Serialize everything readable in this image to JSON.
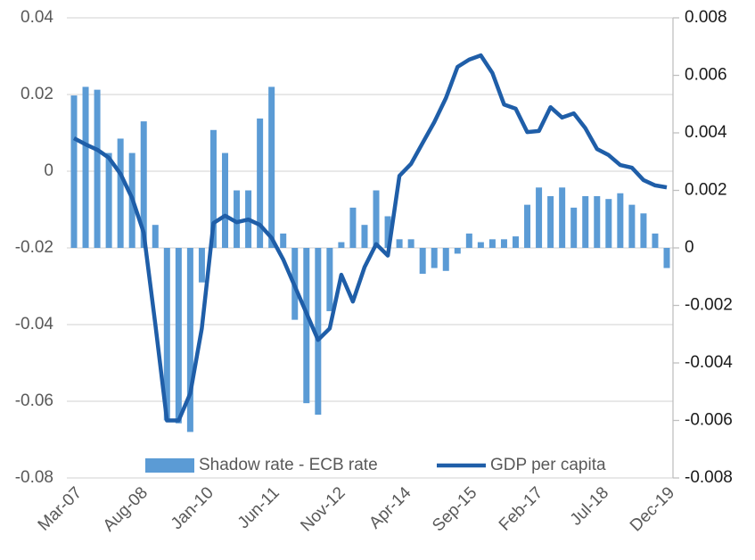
{
  "chart_data": {
    "type": "combo",
    "x": [
      "Mar-07",
      "Jun-07",
      "Sep-07",
      "Dec-07",
      "Mar-08",
      "Jun-08",
      "Sep-08",
      "Dec-08",
      "Mar-09",
      "Jun-09",
      "Sep-09",
      "Dec-09",
      "Mar-10",
      "Jun-10",
      "Sep-10",
      "Dec-10",
      "Mar-11",
      "Jun-11",
      "Sep-11",
      "Dec-11",
      "Mar-12",
      "Jun-12",
      "Sep-12",
      "Dec-12",
      "Mar-13",
      "Jun-13",
      "Sep-13",
      "Dec-13",
      "Mar-14",
      "Jun-14",
      "Sep-14",
      "Dec-14",
      "Mar-15",
      "Jun-15",
      "Sep-15",
      "Dec-15",
      "Mar-16",
      "Jun-16",
      "Sep-16",
      "Dec-16",
      "Mar-17",
      "Jun-17",
      "Sep-17",
      "Dec-17",
      "Mar-18",
      "Jun-18",
      "Sep-18",
      "Dec-18",
      "Mar-19",
      "Jun-19",
      "Sep-19",
      "Dec-19"
    ],
    "xticks": [
      "Mar-07",
      "Aug-08",
      "Jan-10",
      "Jun-11",
      "Nov-12",
      "Apr-14",
      "Sep-15",
      "Feb-17",
      "Jul-18",
      "Dec-19"
    ],
    "ylim": [
      -0.08,
      0.04
    ],
    "yticks": [
      -0.08,
      -0.06,
      -0.04,
      -0.02,
      0,
      0.02,
      0.04
    ],
    "y2lim": [
      -0.008,
      0.008
    ],
    "y2ticks": [
      -0.008,
      -0.006,
      -0.004,
      -0.002,
      0,
      0.002,
      0.004,
      0.006,
      0.008
    ],
    "grid": true,
    "legend": "bottom",
    "series": [
      {
        "name": "Shadow rate - ECB rate",
        "type": "bar",
        "axis": "y2",
        "color": "#5b9bd5",
        "values": [
          0.0053,
          0.0056,
          0.0055,
          0.0033,
          0.0038,
          0.0033,
          0.0044,
          0.0008,
          -0.006,
          -0.0061,
          -0.0064,
          -0.0012,
          0.0041,
          0.0033,
          0.002,
          0.002,
          0.0045,
          0.0056,
          0.0005,
          -0.0025,
          -0.0054,
          -0.0058,
          -0.0022,
          0.0002,
          0.0014,
          0.0008,
          0.002,
          0.0011,
          0.0003,
          0.0003,
          -0.0009,
          -0.0007,
          -0.0008,
          -0.0002,
          0.0005,
          0.0002,
          0.0003,
          0.0003,
          0.0004,
          0.0015,
          0.0021,
          0.0018,
          0.0021,
          0.0014,
          0.0018,
          0.0018,
          0.0017,
          0.0019,
          0.0015,
          0.0012,
          0.0005,
          -0.0007
        ]
      },
      {
        "name": "GDP per capita",
        "type": "line",
        "color": "#1f5ea8",
        "values": [
          0.0086,
          0.007,
          0.0056,
          0.0035,
          -0.0007,
          -0.007,
          -0.016,
          -0.04,
          -0.065,
          -0.065,
          -0.058,
          -0.041,
          -0.0135,
          -0.0116,
          -0.0133,
          -0.0126,
          -0.014,
          -0.0174,
          -0.023,
          -0.03,
          -0.037,
          -0.044,
          -0.041,
          -0.027,
          -0.034,
          -0.025,
          -0.019,
          -0.022,
          -0.0012,
          0.0019,
          0.0074,
          0.0128,
          0.0191,
          0.0272,
          0.0291,
          0.0302,
          0.0256,
          0.0174,
          0.0163,
          0.0102,
          0.0105,
          0.0167,
          0.014,
          0.0151,
          0.0112,
          0.0058,
          0.0042,
          0.0016,
          0.0009,
          -0.0023,
          -0.0037,
          -0.0042
        ]
      }
    ]
  }
}
